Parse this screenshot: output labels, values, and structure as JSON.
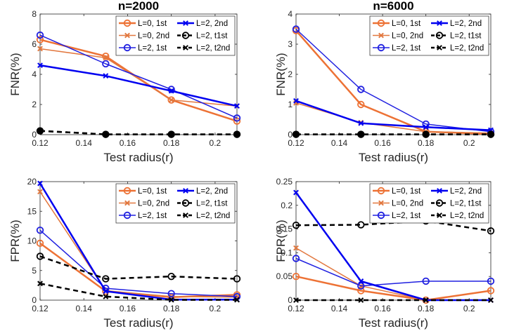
{
  "colors": {
    "l0_first": "#ED7235",
    "l0_second": "#E2783F",
    "l2_first": "#2020E0",
    "l2_second": "#0000F0",
    "t1st": "#000000",
    "t2nd": "#000000"
  },
  "chart_data": [
    {
      "type": "line",
      "title": "n=2000",
      "xlabel": "Test radius(r)",
      "ylabel": "FNR(%)",
      "xlim": [
        0.12,
        0.21
      ],
      "ylim": [
        0,
        8
      ],
      "xticks": [
        0.12,
        0.14,
        0.16,
        0.18,
        0.2
      ],
      "xtick_labels": [
        "0.12",
        "0.14",
        "0.16",
        "0.18",
        "0.2"
      ],
      "yticks": [
        0,
        2,
        4,
        6,
        8
      ],
      "ytick_labels": [
        "0",
        "2",
        "4",
        "6",
        "8"
      ],
      "grid": false,
      "legend_position": "top-right",
      "x": [
        0.12,
        0.15,
        0.18,
        0.21
      ],
      "series": [
        {
          "name": "L=0, 1st",
          "values": [
            6.3,
            5.2,
            2.3,
            0.9
          ],
          "color_key": "l0_first",
          "marker": "circle",
          "line": "solid",
          "width": 2.5
        },
        {
          "name": "L=0, 2nd",
          "values": [
            5.7,
            5.1,
            2.3,
            1.9
          ],
          "color_key": "l0_second",
          "marker": "x",
          "line": "solid",
          "width": 1.5
        },
        {
          "name": "L=2, 1st",
          "values": [
            6.6,
            4.7,
            3.0,
            1.1
          ],
          "color_key": "l2_first",
          "marker": "circle",
          "line": "solid",
          "width": 1.5
        },
        {
          "name": "L=2, 2nd",
          "values": [
            4.6,
            3.9,
            2.9,
            1.9
          ],
          "color_key": "l2_second",
          "marker": "x",
          "line": "solid",
          "width": 2.5
        },
        {
          "name": "L=2, t1st",
          "values": [
            0.25,
            0.02,
            0.02,
            0.02
          ],
          "color_key": "t1st",
          "marker": "circle-filled",
          "line": "dashed",
          "width": 2.5
        },
        {
          "name": "L=2, t2nd",
          "values": [
            0.25,
            0.02,
            0.02,
            0.02
          ],
          "color_key": "t2nd",
          "marker": "x",
          "line": "dashed",
          "width": 2.5
        }
      ]
    },
    {
      "type": "line",
      "title": "n=6000",
      "xlabel": "Test radius(r)",
      "ylabel": "FNR(%)",
      "xlim": [
        0.12,
        0.21
      ],
      "ylim": [
        0,
        4
      ],
      "xticks": [
        0.12,
        0.14,
        0.16,
        0.18,
        0.2
      ],
      "xtick_labels": [
        "0.12",
        "0.14",
        "0.16",
        "0.18",
        "0.2"
      ],
      "yticks": [
        0,
        1,
        2,
        3,
        4
      ],
      "ytick_labels": [
        "0",
        "1",
        "2",
        "3",
        "4"
      ],
      "grid": false,
      "legend_position": "top-right",
      "x": [
        0.12,
        0.15,
        0.18,
        0.21
      ],
      "series": [
        {
          "name": "L=0, 1st",
          "values": [
            3.45,
            1.0,
            0.1,
            0.02
          ],
          "color_key": "l0_first",
          "marker": "circle",
          "line": "solid",
          "width": 2.5
        },
        {
          "name": "L=0, 2nd",
          "values": [
            1.05,
            0.4,
            0.1,
            0.05
          ],
          "color_key": "l0_second",
          "marker": "x",
          "line": "solid",
          "width": 1.5
        },
        {
          "name": "L=2, 1st",
          "values": [
            3.5,
            1.5,
            0.35,
            0.1
          ],
          "color_key": "l2_first",
          "marker": "circle",
          "line": "solid",
          "width": 1.5
        },
        {
          "name": "L=2, 2nd",
          "values": [
            1.12,
            0.38,
            0.25,
            0.15
          ],
          "color_key": "l2_second",
          "marker": "x",
          "line": "solid",
          "width": 2.5
        },
        {
          "name": "L=2, t1st",
          "values": [
            0.01,
            0.01,
            0.01,
            0.01
          ],
          "color_key": "t1st",
          "marker": "circle-filled",
          "line": "dashed",
          "width": 2.5
        },
        {
          "name": "L=2, t2nd",
          "values": [
            0.01,
            0.01,
            0.01,
            0.01
          ],
          "color_key": "t2nd",
          "marker": "x",
          "line": "dashed",
          "width": 2.5
        }
      ]
    },
    {
      "type": "line",
      "title": "",
      "xlabel": "Test radius(r)",
      "ylabel": "FPR(%)",
      "xlim": [
        0.12,
        0.21
      ],
      "ylim": [
        0,
        20
      ],
      "xticks": [
        0.12,
        0.14,
        0.16,
        0.18,
        0.2
      ],
      "xtick_labels": [
        "0.12",
        "0.14",
        "0.16",
        "0.18",
        "0.2"
      ],
      "yticks": [
        0,
        5,
        10,
        15,
        20
      ],
      "ytick_labels": [
        "0",
        "5",
        "10",
        "15",
        "20"
      ],
      "grid": false,
      "legend_position": "top-right",
      "x": [
        0.12,
        0.15,
        0.18,
        0.21
      ],
      "series": [
        {
          "name": "L=0, 1st",
          "values": [
            9.6,
            1.5,
            0.5,
            0.9
          ],
          "color_key": "l0_first",
          "marker": "circle",
          "line": "solid",
          "width": 2.5
        },
        {
          "name": "L=0, 2nd",
          "values": [
            18.3,
            1.6,
            0.6,
            0.5
          ],
          "color_key": "l0_second",
          "marker": "x",
          "line": "solid",
          "width": 1.5
        },
        {
          "name": "L=2, 1st",
          "values": [
            11.8,
            2.0,
            1.1,
            0.6
          ],
          "color_key": "l2_first",
          "marker": "circle",
          "line": "solid",
          "width": 1.5
        },
        {
          "name": "L=2, 2nd",
          "values": [
            19.7,
            1.5,
            0.1,
            0.1
          ],
          "color_key": "l2_second",
          "marker": "x",
          "line": "solid",
          "width": 2.5
        },
        {
          "name": "L=2, t1st",
          "values": [
            7.4,
            3.6,
            4.0,
            3.6
          ],
          "color_key": "t1st",
          "marker": "circle",
          "line": "dashed",
          "width": 2.5
        },
        {
          "name": "L=2, t2nd",
          "values": [
            2.8,
            0.6,
            0.05,
            0.05
          ],
          "color_key": "t2nd",
          "marker": "x",
          "line": "dashed",
          "width": 2.5
        }
      ]
    },
    {
      "type": "line",
      "title": "",
      "xlabel": "Test radius(r)",
      "ylabel": "FPR(%)",
      "xlim": [
        0.12,
        0.21
      ],
      "ylim": [
        0,
        0.25
      ],
      "xticks": [
        0.12,
        0.14,
        0.16,
        0.18,
        0.2
      ],
      "xtick_labels": [
        "0.12",
        "0.14",
        "0.16",
        "0.18",
        "0.2"
      ],
      "yticks": [
        0,
        0.05,
        0.1,
        0.15,
        0.2,
        0.25
      ],
      "ytick_labels": [
        "0",
        "0.05",
        "0.1",
        "0.15",
        "0.2",
        "0.25"
      ],
      "grid": false,
      "legend_position": "top-right",
      "x": [
        0.12,
        0.15,
        0.18,
        0.21
      ],
      "series": [
        {
          "name": "L=0, 1st",
          "values": [
            0.05,
            0.02,
            0.0,
            0.02
          ],
          "color_key": "l0_first",
          "marker": "circle",
          "line": "solid",
          "width": 2.5
        },
        {
          "name": "L=0, 2nd",
          "values": [
            0.11,
            0.03,
            0.0,
            0.0
          ],
          "color_key": "l0_second",
          "marker": "x",
          "line": "solid",
          "width": 1.5
        },
        {
          "name": "L=2, 1st",
          "values": [
            0.088,
            0.03,
            0.04,
            0.04
          ],
          "color_key": "l2_first",
          "marker": "circle",
          "line": "solid",
          "width": 1.5
        },
        {
          "name": "L=2, 2nd",
          "values": [
            0.227,
            0.04,
            0.0,
            0.0
          ],
          "color_key": "l2_second",
          "marker": "x",
          "line": "solid",
          "width": 2.5
        },
        {
          "name": "L=2, t1st",
          "values": [
            0.158,
            0.159,
            0.167,
            0.146
          ],
          "color_key": "t1st",
          "marker": "circle",
          "line": "dashed",
          "width": 2.5
        },
        {
          "name": "L=2, t2nd",
          "values": [
            0.0,
            0.0,
            0.0,
            0.0
          ],
          "color_key": "t2nd",
          "marker": "x",
          "line": "dashed",
          "width": 2.5
        }
      ]
    }
  ]
}
